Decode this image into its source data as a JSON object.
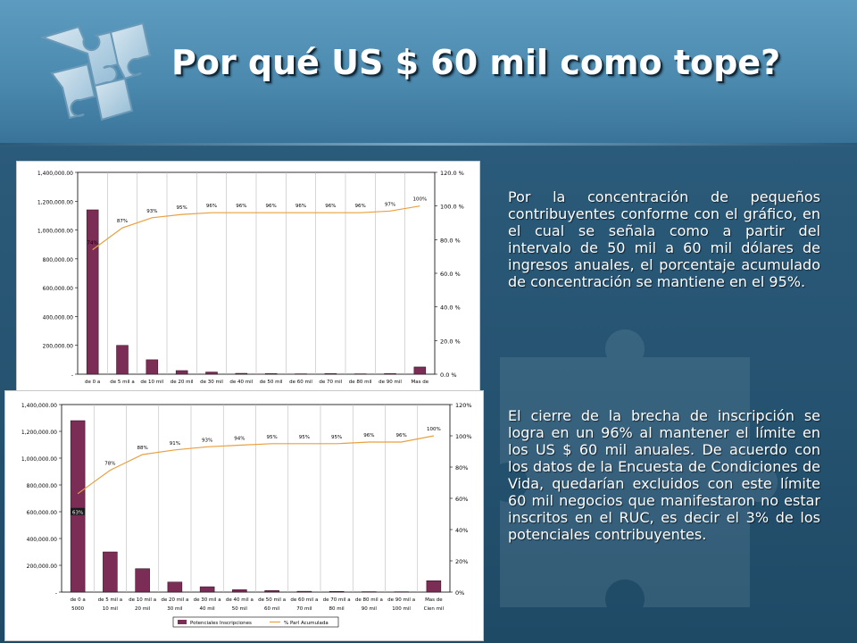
{
  "slide": {
    "title": "Por qué US $ 60 mil como tope?",
    "paragraph1": "Por la concentración de pequeños contribuyentes conforme con el gráfico, en el cual se señala como a partir del intervalo de 50 mil a 60 mil dólares de ingresos anuales, el porcentaje acumulado de concentración se mantiene en el 95%.",
    "paragraph2": "El cierre de la brecha de inscripción se logra en un 96% al mantener el límite en los US $ 60 mil anuales. De acuerdo con los datos de la Encuesta de Condiciones de Vida, quedarían excluidos con este límite 60 mil negocios que manifestaron no estar inscritos en el RUC, es decir el 3% de los potenciales contribuyentes."
  },
  "colors": {
    "bar": "#7b2d55",
    "line": "#e8a040",
    "title": "#ffffff"
  },
  "chart_data": [
    {
      "type": "bar",
      "categories": [
        "de 0 a",
        "de 5 mil a",
        "de 10 mil",
        "de 20 mil",
        "de 30 mil",
        "de 40 mil",
        "de 50 mil",
        "de 60 mil",
        "de 70 mil",
        "de 80 mil",
        "de 90 mil",
        "Mas de"
      ],
      "y_ticks": [
        "1,400,000.00",
        "1,200,000.00",
        "1,000,000.00",
        "800,000.00",
        "600,000.00",
        "400,000.00",
        "200,000.00",
        "-"
      ],
      "y2_ticks": [
        "120.0 %",
        "100.0 %",
        "80.0 %",
        "60.0 %",
        "40.0 %",
        "20.0 %",
        "0.0 %"
      ],
      "ylim": [
        0,
        1400000
      ],
      "y2lim": [
        0,
        120
      ],
      "series": [
        {
          "values": [
            1140000,
            200000,
            100000,
            25000,
            15000,
            6000,
            4000,
            2500,
            4000,
            2500,
            4000,
            50000
          ]
        },
        {
          "values": [
            74,
            87,
            93,
            95,
            96,
            96,
            96,
            96,
            96,
            96,
            97,
            100
          ]
        }
      ],
      "data_labels": [
        "74%",
        "87%",
        "93%",
        "95%",
        "96%",
        "96%",
        "96%",
        "96%",
        "96%",
        "96%",
        "97%",
        "100%"
      ]
    },
    {
      "type": "bar",
      "categories": [
        "de 0 a 5000",
        "de 5 mil a 10 mil",
        "de 10 mil a 20 mil",
        "de 20 mil a 30 mil",
        "de 30 mil a 40 mil",
        "de 40 mil a 50 mil",
        "de 50 mil a 60 mil",
        "de 60 mil a 70 mil",
        "de 70 mil a 80 mil",
        "de 80 mil a 90 mil",
        "de 90 mil a 100 mil",
        "Mas de Cien mil"
      ],
      "y_ticks": [
        "1,400,000.00",
        "1,200,000.00",
        "1,000,000.00",
        "800,000.00",
        "600,000.00",
        "400,000.00",
        "200,000.00",
        "-"
      ],
      "y2_ticks": [
        "120%",
        "100%",
        "80%",
        "60%",
        "40%",
        "20%",
        "0%"
      ],
      "ylim": [
        0,
        1400000
      ],
      "y2lim": [
        0,
        120
      ],
      "series": [
        {
          "name": "Potenciales Inscripciones",
          "values": [
            1280000,
            300000,
            175000,
            75000,
            40000,
            18000,
            12000,
            6000,
            5000,
            3000,
            2500,
            85000
          ]
        },
        {
          "name": "% Parl Acumulada",
          "values": [
            63,
            78,
            88,
            91,
            93,
            94,
            95,
            95,
            95,
            96,
            96,
            100
          ]
        }
      ],
      "data_labels": [
        "63%",
        "78%",
        "88%",
        "91%",
        "93%",
        "94%",
        "95%",
        "95%",
        "95%",
        "96%",
        "96%",
        "100%"
      ],
      "legend": [
        "Potenciales Inscripciones",
        "% Parl Acumulada"
      ]
    }
  ]
}
